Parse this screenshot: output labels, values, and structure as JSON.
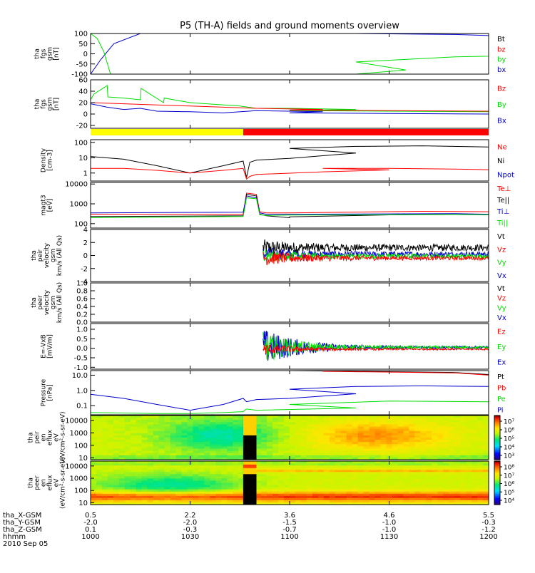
{
  "title": "P5 (TH-A) fields and ground moments overview",
  "colors": {
    "black": "#000000",
    "red": "#ff0000",
    "green": "#00dd00",
    "blue": "#0000cc",
    "bar_yellow": "#ffff00",
    "bar_red": "#ff0000"
  },
  "chart_data": [
    {
      "type": "line",
      "title": "P5 (TH-A) fields and ground moments overview",
      "ylabel": [
        "tha",
        "fgs",
        "gsm",
        "[nT]"
      ],
      "ylim": [
        -100,
        100
      ],
      "yticks": [
        "100",
        "50",
        "0",
        "-50",
        "-100"
      ],
      "legend": [
        {
          "name": "Bt",
          "color": "black"
        },
        {
          "name": "bz",
          "color": "red"
        },
        {
          "name": "by",
          "color": "green"
        },
        {
          "name": "bx",
          "color": "blue"
        }
      ],
      "series": [
        {
          "name": "bx",
          "color": "blue",
          "x": [
            1000,
            1003,
            1007,
            1015,
            1030,
            1060,
            1090,
            1120,
            1150,
            1180,
            1200
          ],
          "y": [
            -100,
            -30,
            50,
            100,
            100,
            100,
            100,
            100,
            95,
            80,
            60
          ]
        },
        {
          "name": "by",
          "color": "green",
          "x": [
            1000,
            1002,
            1004,
            1006,
            1030,
            1080,
            1095,
            1120,
            1150,
            1180,
            1200
          ],
          "y": [
            100,
            75,
            10,
            -100,
            -100,
            -100,
            -80,
            -40,
            -15,
            -5,
            0
          ]
        }
      ]
    },
    {
      "type": "line",
      "ylabel": [
        "tha",
        "fgs",
        "gsm",
        "[nT]"
      ],
      "ylim": [
        -25,
        60
      ],
      "yticks": [
        "60",
        "40",
        "20",
        "0",
        "-20"
      ],
      "legend": [
        {
          "name": "Bz",
          "color": "red"
        },
        {
          "name": "By",
          "color": "green"
        },
        {
          "name": "Bx",
          "color": "blue"
        }
      ],
      "series": [
        {
          "name": "By",
          "color": "green",
          "x": [
            1000,
            1001,
            1005,
            1005.2,
            1010,
            1015,
            1015.2,
            1022,
            1022.2,
            1030,
            1035,
            1045,
            1050,
            1060,
            1080,
            1100,
            1130,
            1160,
            1200
          ],
          "y": [
            25,
            35,
            50,
            30,
            28,
            25,
            45,
            20,
            28,
            20,
            18,
            14,
            10,
            10,
            8,
            6,
            5,
            4,
            3
          ]
        },
        {
          "name": "Bz",
          "color": "red",
          "x": [
            1000,
            1010,
            1020,
            1030,
            1040,
            1050,
            1070,
            1100,
            1130,
            1160,
            1200
          ],
          "y": [
            20,
            18,
            16,
            14,
            12,
            10,
            8,
            7,
            6,
            5,
            4
          ]
        },
        {
          "name": "Bx",
          "color": "blue",
          "x": [
            1000,
            1005,
            1010,
            1015,
            1020,
            1030,
            1040,
            1050,
            1070,
            1100,
            1130,
            1160,
            1200
          ],
          "y": [
            18,
            12,
            8,
            10,
            5,
            4,
            2,
            6,
            4,
            2,
            1,
            0,
            -1
          ]
        }
      ]
    },
    {
      "type": "bar",
      "segments": [
        {
          "from": 1000,
          "to": 1046,
          "color": "bar_yellow"
        },
        {
          "from": 1046,
          "to": 1200,
          "color": "bar_red"
        }
      ]
    },
    {
      "type": "line",
      "ylabel": [
        "Density",
        "[cm-3]"
      ],
      "scale": "log",
      "ylim": [
        0.3,
        150
      ],
      "yticks": [
        {
          "v": 100,
          "t": "100"
        },
        {
          "v": 10,
          "t": "10"
        },
        {
          "v": 1,
          "t": "1"
        }
      ],
      "legend": [
        {
          "name": "Ne",
          "color": "red"
        },
        {
          "name": "Ni",
          "color": "black"
        },
        {
          "name": "Npot",
          "color": "blue"
        }
      ],
      "series": [
        {
          "name": "Ni",
          "color": "black",
          "x": [
            1000,
            1010,
            1020,
            1030,
            1040,
            1046,
            1047,
            1048,
            1050,
            1060,
            1080,
            1100,
            1120,
            1140,
            1160,
            1180,
            1200
          ],
          "y": [
            12,
            8,
            3,
            1,
            3,
            6,
            0.5,
            5,
            7,
            9,
            20,
            40,
            55,
            60,
            50,
            40,
            25
          ]
        },
        {
          "name": "Ne",
          "color": "red",
          "x": [
            1000,
            1010,
            1020,
            1030,
            1040,
            1046,
            1047,
            1048,
            1050,
            1070,
            1090,
            1110,
            1130,
            1150,
            1170,
            1200
          ],
          "y": [
            2,
            2,
            1.5,
            1,
            1.5,
            2,
            0.4,
            0.6,
            0.8,
            1.2,
            1.6,
            2.0,
            2.0,
            1.8,
            1.5,
            1.1
          ]
        }
      ]
    },
    {
      "type": "line",
      "ylabel": [
        "magt3",
        "[eV]"
      ],
      "scale": "log",
      "ylim": [
        60,
        12000
      ],
      "yticks": [
        {
          "v": 10000,
          "t": "10000"
        },
        {
          "v": 1000,
          "t": "1000"
        },
        {
          "v": 100,
          "t": "100"
        }
      ],
      "legend": [
        {
          "name": "Te⊥",
          "color": "red"
        },
        {
          "name": "Te||",
          "color": "black"
        },
        {
          "name": "Ti⊥",
          "color": "blue"
        },
        {
          "name": "Ti||",
          "color": "green"
        }
      ],
      "series": [
        {
          "name": "Te⊥",
          "color": "red",
          "x": [
            1000,
            1046,
            1047,
            1050,
            1051,
            1053,
            1100,
            1140,
            1180,
            1200
          ],
          "y": [
            300,
            300,
            3500,
            3000,
            400,
            350,
            350,
            420,
            380,
            350
          ]
        },
        {
          "name": "Te||",
          "color": "black",
          "x": [
            1000,
            1046,
            1047,
            1050,
            1051,
            1053,
            1060,
            1100,
            1140,
            1180,
            1200
          ],
          "y": [
            230,
            250,
            3000,
            2500,
            300,
            250,
            200,
            220,
            300,
            280,
            260
          ]
        },
        {
          "name": "Ti⊥",
          "color": "blue",
          "x": [
            1000,
            1046,
            1047,
            1050,
            1051,
            1053,
            1100,
            1150,
            1200
          ],
          "y": [
            350,
            380,
            2500,
            2000,
            350,
            300,
            300,
            320,
            300
          ]
        },
        {
          "name": "Ti||",
          "color": "green",
          "x": [
            1000,
            1046,
            1047,
            1050,
            1051,
            1053,
            1100,
            1150,
            1200
          ],
          "y": [
            200,
            230,
            2000,
            1800,
            280,
            260,
            270,
            290,
            280
          ]
        }
      ]
    },
    {
      "type": "line",
      "ylabel": [
        "tha",
        "peir",
        "velocity",
        "gsm",
        "km/s (All Qs)"
      ],
      "ylim": [
        -4,
        4
      ],
      "yticks": [
        "4",
        "2",
        "0",
        "-2",
        "-4"
      ],
      "legend": [
        {
          "name": "Vt",
          "color": "black"
        },
        {
          "name": "Vz",
          "color": "red"
        },
        {
          "name": "Vy",
          "color": "green"
        },
        {
          "name": "Vx",
          "color": "blue"
        }
      ],
      "noise": {
        "start": 1052,
        "end": 1200
      },
      "series": [
        {
          "name": "Vt",
          "color": "black",
          "level": 1.2,
          "amp0": 1.3,
          "amp1": 0.5
        },
        {
          "name": "Vx",
          "color": "blue",
          "level": 0.2,
          "amp0": 1.1,
          "amp1": 0.4
        },
        {
          "name": "Vy",
          "color": "green",
          "level": -0.1,
          "amp0": 1.0,
          "amp1": 0.35
        },
        {
          "name": "Vz",
          "color": "red",
          "level": -0.4,
          "amp0": 1.2,
          "amp1": 0.3
        }
      ]
    },
    {
      "type": "line",
      "ylabel": [
        "tha",
        "peer",
        "velocity",
        "gsm",
        "km/s (All Qs)"
      ],
      "ylim": [
        0,
        1
      ],
      "yticks": [
        "1.0",
        "0.8",
        "0.6",
        "0.4",
        "0.2",
        "0.0"
      ],
      "legend": [
        {
          "name": "Vt",
          "color": "black"
        },
        {
          "name": "Vz",
          "color": "red"
        },
        {
          "name": "Vy",
          "color": "green"
        },
        {
          "name": "Vx",
          "color": "blue"
        }
      ],
      "series": []
    },
    {
      "type": "line",
      "ylabel": [
        "E=-VxB",
        "[mV/m]"
      ],
      "ylim": [
        -1.1,
        1.3
      ],
      "yticks": [
        "1.0",
        "0.5",
        "0.0",
        "-0.5",
        "-1.0"
      ],
      "legend": [
        {
          "name": "Ez",
          "color": "red"
        },
        {
          "name": "Ey",
          "color": "green"
        },
        {
          "name": "Ex",
          "color": "blue"
        }
      ],
      "noise": {
        "start": 1052,
        "end": 1200
      },
      "series": [
        {
          "name": "Ex",
          "color": "blue",
          "level": 0.05,
          "amp0": 1.0,
          "amp1": 0.06
        },
        {
          "name": "Ey",
          "color": "green",
          "level": 0.05,
          "amp0": 0.8,
          "amp1": 0.06
        },
        {
          "name": "Ez",
          "color": "red",
          "level": -0.05,
          "amp0": 0.3,
          "amp1": 0.04
        }
      ]
    },
    {
      "type": "line",
      "ylabel": [
        "Pressure",
        "[nPa]"
      ],
      "scale": "log",
      "ylim": [
        0.025,
        20
      ],
      "yticks": [
        {
          "v": 10,
          "t": "10.0"
        },
        {
          "v": 1,
          "t": "1.0"
        },
        {
          "v": 0.1,
          "t": "0.1"
        }
      ],
      "legend": [
        {
          "name": "Pt",
          "color": "black"
        },
        {
          "name": "Pb",
          "color": "red"
        },
        {
          "name": "Pe",
          "color": "green"
        },
        {
          "name": "Pi",
          "color": "blue"
        }
      ],
      "series": [
        {
          "name": "Pt",
          "color": "black",
          "x": [
            1100,
            1150,
            1200
          ],
          "y": [
            20,
            15,
            11
          ]
        },
        {
          "name": "Pb",
          "color": "red",
          "x": [
            1110,
            1150,
            1200
          ],
          "y": [
            18,
            14,
            10
          ]
        },
        {
          "name": "Pi",
          "color": "blue",
          "x": [
            1000,
            1010,
            1020,
            1030,
            1040,
            1046,
            1047,
            1050,
            1060,
            1080,
            1100,
            1120,
            1140,
            1160,
            1180,
            1200
          ],
          "y": [
            0.55,
            0.3,
            0.12,
            0.05,
            0.12,
            0.3,
            0.18,
            0.25,
            0.3,
            0.6,
            1.2,
            1.8,
            2.0,
            1.8,
            1.3,
            0.9
          ]
        },
        {
          "name": "Pe",
          "color": "green",
          "x": [
            1000,
            1020,
            1030,
            1040,
            1046,
            1047,
            1050,
            1080,
            1100,
            1130,
            1160,
            1200
          ],
          "y": [
            0.035,
            0.03,
            0.03,
            0.035,
            0.04,
            0.06,
            0.05,
            0.07,
            0.12,
            0.2,
            0.18,
            0.12
          ]
        }
      ]
    },
    {
      "type": "heatmap",
      "ylabel": [
        "tha",
        "peir",
        "en",
        "eflux",
        "eV",
        "(eV/cm²-s-sr-eV)"
      ],
      "yticks": [
        {
          "v": 10000,
          "t": "10000"
        },
        {
          "v": 1000,
          "t": "1000"
        },
        {
          "v": 100,
          "t": "100"
        },
        {
          "v": 10,
          "t": "10"
        }
      ],
      "colorbar_ticks": [
        "10⁷",
        "10⁶",
        "10⁵",
        "10⁴",
        "10³"
      ],
      "colorbar_range": [
        1000,
        30000000
      ]
    },
    {
      "type": "heatmap",
      "ylabel": [
        "tha",
        "peer",
        "en",
        "eflux",
        "eV",
        "(eV/cm²-s-sr-eV)"
      ],
      "yticks": [
        {
          "v": 10000,
          "t": "10000"
        },
        {
          "v": 1000,
          "t": "1000"
        },
        {
          "v": 100,
          "t": "100"
        },
        {
          "v": 10,
          "t": "10"
        }
      ],
      "colorbar_ticks": [
        "10⁸",
        "10⁷",
        "10⁶",
        "10⁵",
        "10⁴"
      ],
      "colorbar_range": [
        10000,
        300000000
      ]
    }
  ],
  "xaxis": {
    "range": [
      1000,
      1200
    ],
    "ticks": [
      1000,
      1030,
      1100,
      1130,
      1200
    ],
    "row_labels": [
      "tha_X-GSM",
      "tha_Y-GSM",
      "tha_Z-GSM",
      "hhmm",
      "2010 Sep 05"
    ],
    "columns": [
      [
        "0.5",
        "-2.0",
        "0.1",
        "1000"
      ],
      [
        "2.2",
        "-2.0",
        "-0.3",
        "1030"
      ],
      [
        "3.6",
        "-1.5",
        "-0.7",
        "1100"
      ],
      [
        "4.6",
        "-1.0",
        "-1.0",
        "1130"
      ],
      [
        "5.5",
        "-0.3",
        "-1.2",
        "1200"
      ]
    ]
  }
}
